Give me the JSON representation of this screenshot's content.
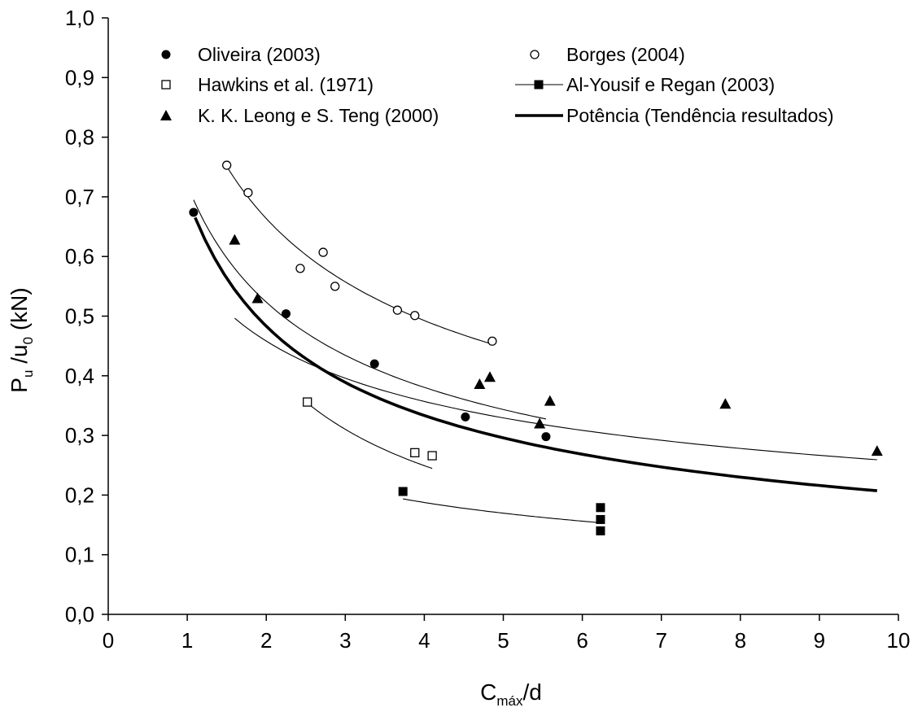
{
  "chart_data": {
    "type": "scatter",
    "title": "",
    "xlabel": {
      "main": "C",
      "sub": "máx",
      "rest": "/d"
    },
    "ylabel": {
      "p1": "P",
      "s1": "u",
      "p2": " /u",
      "s2": "0",
      "p3": " (kN)"
    },
    "xlim": [
      0,
      10
    ],
    "ylim": [
      0,
      1.0
    ],
    "x_ticks": [
      "0",
      "1",
      "2",
      "3",
      "4",
      "5",
      "6",
      "7",
      "8",
      "9",
      "10"
    ],
    "y_ticks": [
      "0,0",
      "0,1",
      "0,2",
      "0,3",
      "0,4",
      "0,5",
      "0,6",
      "0,7",
      "0,8",
      "0,9",
      "1,0"
    ],
    "grid": false,
    "legend_position": "top",
    "series": [
      {
        "name": "Oliveira (2003)",
        "marker": "circle-filled",
        "x": [
          1.08,
          2.25,
          3.37,
          4.52,
          5.54
        ],
        "y": [
          0.674,
          0.504,
          0.42,
          0.331,
          0.298
        ],
        "trend": {
          "a": 0.72,
          "b": -0.46,
          "x_range": [
            1.08,
            5.54
          ]
        }
      },
      {
        "name": "Borges (2004)",
        "marker": "circle-open",
        "x": [
          1.5,
          1.77,
          2.43,
          2.72,
          2.87,
          3.66,
          3.88,
          4.86
        ],
        "y": [
          0.753,
          0.707,
          0.58,
          0.607,
          0.55,
          0.51,
          0.501,
          0.458
        ],
        "trend": {
          "a": 0.894,
          "b": -0.43,
          "x_range": [
            1.5,
            4.86
          ]
        }
      },
      {
        "name": "Hawkins et al. (1971)",
        "marker": "square-open",
        "x": [
          2.52,
          3.88,
          4.1
        ],
        "y": [
          0.356,
          0.271,
          0.266
        ],
        "trend": {
          "a": 0.715,
          "b": -0.76,
          "x_range": [
            2.52,
            4.1
          ]
        }
      },
      {
        "name": "Al-Yousif e Regan (2003)",
        "marker": "square-filled",
        "x": [
          3.73,
          6.23,
          6.23,
          6.23
        ],
        "y": [
          0.206,
          0.179,
          0.159,
          0.14
        ],
        "trend": {
          "a": 0.35,
          "b": -0.45,
          "x_range": [
            3.73,
            6.23
          ]
        }
      },
      {
        "name": "K. K. Leong e S. Teng (2000)",
        "marker": "triangle-filled",
        "x": [
          1.6,
          1.89,
          4.7,
          4.83,
          5.46,
          5.59,
          7.81,
          9.73
        ],
        "y": [
          0.628,
          0.53,
          0.386,
          0.398,
          0.32,
          0.358,
          0.353,
          0.274
        ],
        "trend": {
          "a": 0.588,
          "b": -0.36,
          "x_range": [
            1.6,
            9.73
          ]
        }
      },
      {
        "name": "Potência (Tendência resultados)",
        "marker": "none",
        "trend": {
          "a": 0.7,
          "b": -0.535,
          "x_range": [
            1.1,
            9.73
          ],
          "bold": true
        }
      }
    ]
  }
}
